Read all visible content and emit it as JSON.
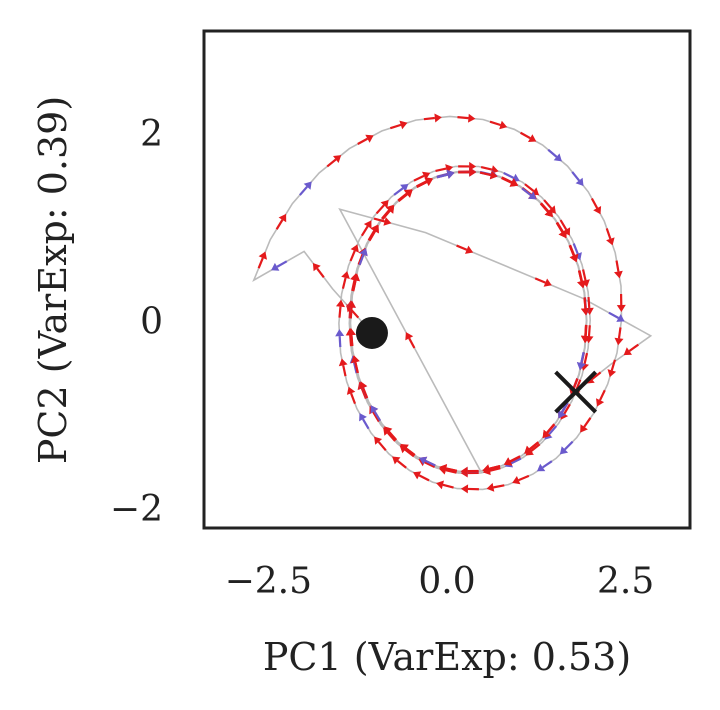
{
  "chart_data": {
    "type": "line",
    "title": "",
    "xlabel": "PC1 (VarExp: 0.53)",
    "ylabel": "PC2 (VarExp: 0.39)",
    "xlim": [
      -3.4,
      3.4
    ],
    "ylim": [
      -2.2,
      3.1
    ],
    "xticks": [
      -2.5,
      0.0,
      2.5
    ],
    "xtick_labels": [
      "−2.5",
      "0.0",
      "2.5"
    ],
    "yticks": [
      -2,
      0,
      2
    ],
    "ytick_labels": [
      "−2",
      "0",
      "2"
    ],
    "grid": false,
    "colors": {
      "trajectory": "#bbbbbb",
      "arrow_red": "#e41a1c",
      "arrow_purple": "#6a5acd",
      "start_marker": "#1a1a1a",
      "end_marker": "#1a1a1a",
      "frame": "#222222"
    },
    "start_point": {
      "x": -1.05,
      "y": -0.12
    },
    "end_point": {
      "x": 1.8,
      "y": -0.75
    },
    "spiral": {
      "center": [
        0.3,
        0.0
      ],
      "r_outer": [
        3.05,
        2.55
      ],
      "r_inner": [
        1.65,
        1.6
      ],
      "decay_per_turn": 0.45,
      "start_angle_deg": 170,
      "turns": 4.7,
      "points_per_turn": 34
    },
    "lead_in": [
      {
        "x": -1.05,
        "y": -0.12
      },
      {
        "x": -1.6,
        "y": 0.35
      },
      {
        "x": -2.0,
        "y": 0.75
      }
    ],
    "tail_chord": [
      {
        "x": -1.5,
        "y": 1.2
      },
      {
        "x": -0.3,
        "y": 0.95
      },
      {
        "x": 0.8,
        "y": 0.6
      },
      {
        "x": 1.9,
        "y": 0.25
      },
      {
        "x": 2.85,
        "y": -0.15
      },
      {
        "x": 2.3,
        "y": -0.45
      },
      {
        "x": 1.8,
        "y": -0.75
      }
    ],
    "series": [
      {
        "name": "trajectory",
        "marker": "arrows"
      }
    ]
  }
}
